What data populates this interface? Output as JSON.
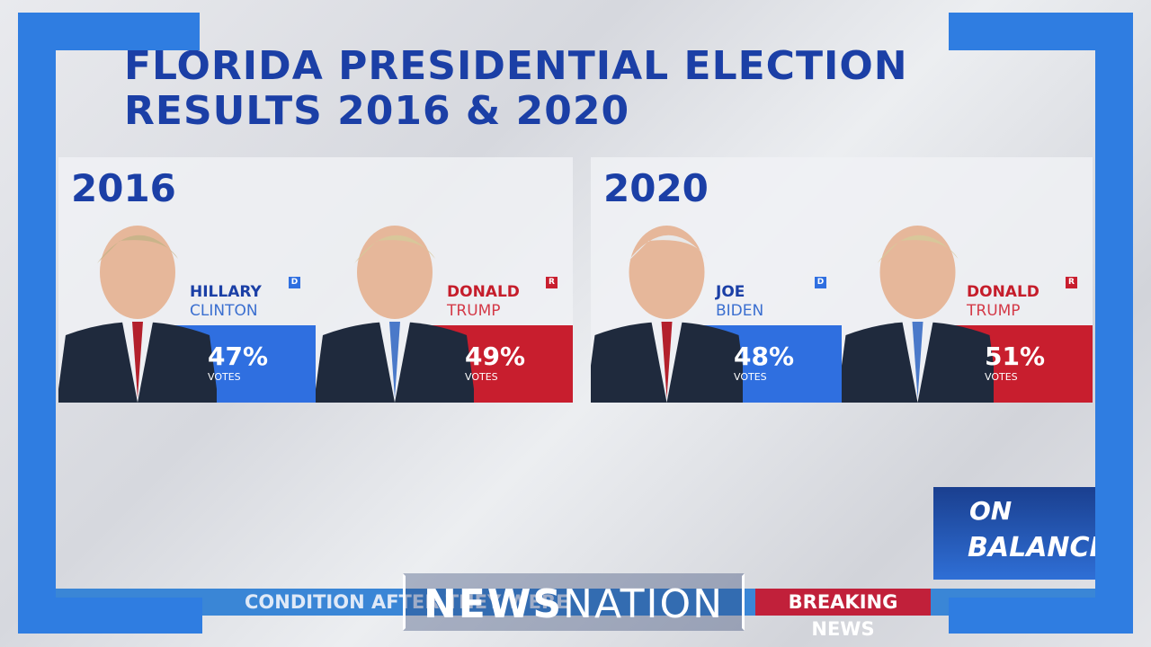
{
  "header": {
    "title_line1": "FLORIDA PRESIDENTIAL ELECTION",
    "title_line2": "RESULTS 2016 & 2020"
  },
  "panels": [
    {
      "year": "2016",
      "candidates": [
        {
          "first": "HILLARY",
          "last": "CLINTON",
          "party": "D",
          "share": "47%",
          "unit": "VOTES"
        },
        {
          "first": "DONALD",
          "last": "TRUMP",
          "party": "R",
          "share": "49%",
          "unit": "VOTES"
        }
      ]
    },
    {
      "year": "2020",
      "candidates": [
        {
          "first": "JOE",
          "last": "BIDEN",
          "party": "D",
          "share": "48%",
          "unit": "VOTES"
        },
        {
          "first": "DONALD",
          "last": "TRUMP",
          "party": "R",
          "share": "51%",
          "unit": "VOTES"
        }
      ]
    }
  ],
  "show": {
    "line1": "ON",
    "line2": "BALANCE"
  },
  "ticker": {
    "story": "CONDITION AFTER THEY WERE",
    "flag": "BREAKING NEWS"
  },
  "network": {
    "part1": "NEWS",
    "part2": "NATION"
  }
}
